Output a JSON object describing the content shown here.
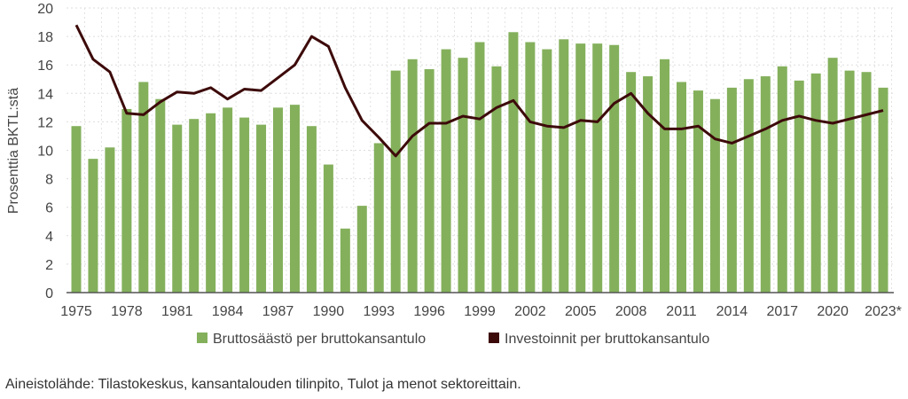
{
  "chart_data": {
    "type": "bar",
    "title": "",
    "xlabel": "",
    "ylabel": "Prosenttia BKTL:stä",
    "ylim": [
      0,
      20
    ],
    "yticks": [
      0,
      2,
      4,
      6,
      8,
      10,
      12,
      14,
      16,
      18,
      20
    ],
    "grid": true,
    "legend_position": "bottom",
    "categories": [
      "1975",
      "1976",
      "1977",
      "1978",
      "1979",
      "1980",
      "1981",
      "1982",
      "1983",
      "1984",
      "1985",
      "1986",
      "1987",
      "1988",
      "1989",
      "1990",
      "1991",
      "1992",
      "1993",
      "1994",
      "1995",
      "1996",
      "1997",
      "1998",
      "1999",
      "2000",
      "2001",
      "2002",
      "2003",
      "2004",
      "2005",
      "2006",
      "2007",
      "2008",
      "2009",
      "2010",
      "2011",
      "2012",
      "2013",
      "2014",
      "2015",
      "2016",
      "2017",
      "2018",
      "2019",
      "2020",
      "2021",
      "2022",
      "2023*"
    ],
    "xtick_labels": [
      "1975",
      "1978",
      "1981",
      "1984",
      "1987",
      "1990",
      "1993",
      "1996",
      "1999",
      "2002",
      "2005",
      "2008",
      "2011",
      "2014",
      "2017",
      "2020",
      "2023*"
    ],
    "series": [
      {
        "name": "Bruttosäästö per bruttokansantulo",
        "type": "bar",
        "color": "#84b05c",
        "values": [
          11.7,
          9.4,
          10.2,
          12.9,
          14.8,
          13.6,
          11.8,
          12.2,
          12.6,
          13.0,
          12.3,
          11.8,
          13.0,
          13.2,
          11.7,
          9.0,
          4.5,
          6.1,
          10.5,
          15.6,
          16.4,
          15.7,
          17.1,
          16.5,
          17.6,
          15.9,
          18.3,
          17.6,
          17.1,
          17.8,
          17.5,
          17.5,
          17.4,
          15.5,
          15.2,
          16.4,
          14.8,
          14.2,
          13.6,
          14.4,
          15.0,
          15.2,
          15.9,
          14.9,
          15.4,
          16.5,
          15.6,
          15.5,
          14.4
        ]
      },
      {
        "name": "Investoinnit per bruttokansantulo",
        "type": "line",
        "color": "#3d0a0a",
        "values": [
          18.8,
          16.4,
          15.5,
          12.6,
          12.5,
          13.4,
          14.1,
          14.0,
          14.4,
          13.6,
          14.3,
          14.2,
          15.1,
          16.0,
          18.0,
          17.3,
          14.4,
          12.1,
          10.9,
          9.6,
          11.0,
          11.9,
          11.9,
          12.4,
          12.2,
          13.0,
          13.5,
          12.0,
          11.7,
          11.6,
          12.1,
          12.0,
          13.3,
          14.0,
          12.6,
          11.5,
          11.5,
          11.7,
          10.8,
          10.5,
          11.0,
          11.5,
          12.1,
          12.4,
          12.1,
          11.9,
          12.2,
          12.5,
          12.8
        ]
      }
    ]
  },
  "source": "Aineistolähde: Tilastokeskus, kansantalouden tilinpito, Tulot ja menot sektoreittain."
}
